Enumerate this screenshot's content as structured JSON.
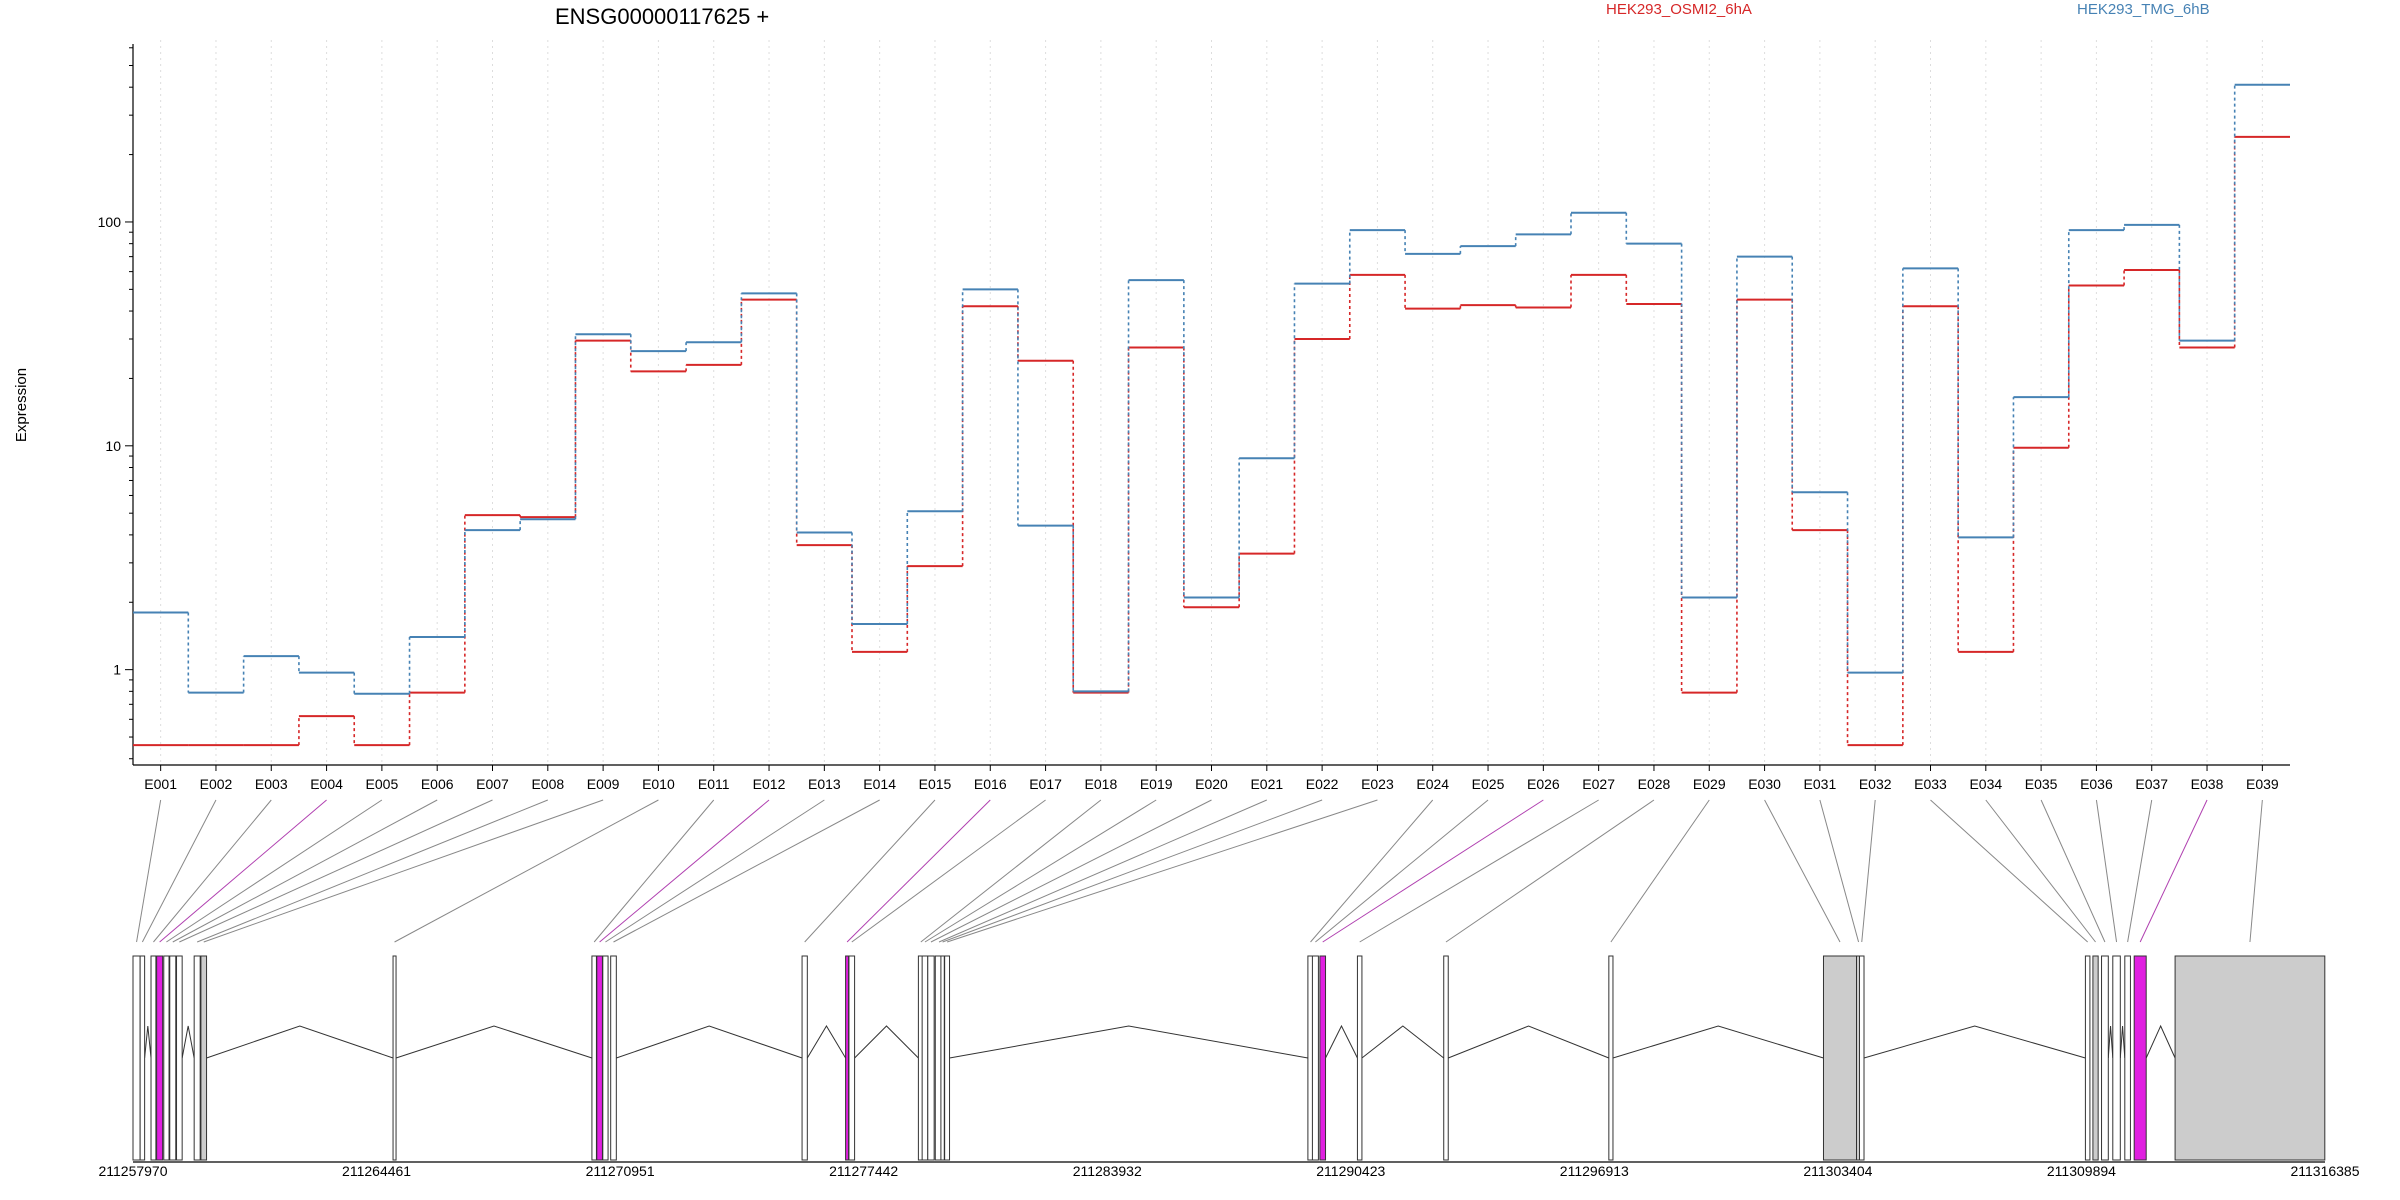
{
  "chart_data": {
    "type": "line",
    "title": "ENSG00000117625 +",
    "ylabel": "Expression",
    "xlabel": "",
    "y_scale": "log",
    "y_ticks": [
      1,
      10,
      100
    ],
    "y_tick_labels": [
      "1",
      "10",
      "100"
    ],
    "ylim": [
      0.375,
      650
    ],
    "grid": "vertical dotted per exon",
    "legend_position": "top",
    "categories": [
      "E001",
      "E002",
      "E003",
      "E004",
      "E005",
      "E006",
      "E007",
      "E008",
      "E009",
      "E010",
      "E011",
      "E012",
      "E013",
      "E014",
      "E015",
      "E016",
      "E017",
      "E018",
      "E019",
      "E020",
      "E021",
      "E022",
      "E023",
      "E024",
      "E025",
      "E026",
      "E027",
      "E028",
      "E029",
      "E030",
      "E031",
      "E032",
      "E033",
      "E034",
      "E035",
      "E036",
      "E037",
      "E038",
      "E039"
    ],
    "series": [
      {
        "name": "HEK293_OSMI2_6hA",
        "color": "#d62728",
        "values": [
          0.46,
          0.46,
          0.46,
          0.62,
          0.46,
          0.79,
          4.9,
          4.8,
          29.5,
          21.5,
          23,
          45,
          3.6,
          1.2,
          2.9,
          42,
          24,
          0.79,
          27.5,
          1.9,
          3.3,
          30,
          58,
          41,
          42.5,
          41.5,
          58,
          43,
          0.79,
          45,
          4.2,
          0.46,
          42,
          1.2,
          9.8,
          52,
          61,
          27.5,
          240
        ]
      },
      {
        "name": "HEK293_TMG_6hB",
        "color": "#4682b4",
        "values": [
          1.8,
          0.79,
          1.15,
          0.97,
          0.78,
          1.4,
          4.2,
          4.7,
          31.5,
          26.5,
          29,
          48,
          4.1,
          1.6,
          5.1,
          50,
          4.4,
          0.8,
          55,
          2.1,
          8.8,
          53,
          92,
          72,
          78,
          88,
          110,
          80,
          2.1,
          70,
          6.2,
          0.97,
          62,
          3.9,
          16.5,
          92,
          97,
          29.5,
          410
        ]
      }
    ],
    "gene_model": {
      "coordinate_labels": [
        "211257970",
        "211264461",
        "211270951",
        "211277442",
        "211283932",
        "211290423",
        "211296913",
        "211303404",
        "211309894",
        "211316385"
      ],
      "exon_colors": {
        "default": "#ffffff",
        "shaded": "#cccccc",
        "highlight": "#e020e0"
      },
      "highlighted_exons": [
        "E004",
        "E012",
        "E016",
        "E026",
        "E038"
      ],
      "shaded_exons": [
        "E009",
        "E030",
        "E031",
        "E034",
        "E039"
      ]
    }
  }
}
